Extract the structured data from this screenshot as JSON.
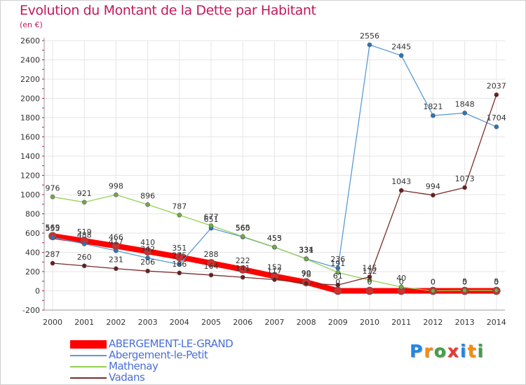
{
  "title": "Evolution du Montant de la Dette par Habitant",
  "unit": "(en €)",
  "logo": {
    "text": "Proxiti",
    "letters": [
      "P",
      "r",
      "o",
      "x",
      "i",
      "t",
      "i"
    ],
    "colors": [
      "#1e88e5",
      "#fb8c00",
      "#43a047",
      "#e53935",
      "#1e88e5",
      "#fb8c00",
      "#43a047"
    ]
  },
  "chart_data": {
    "type": "line",
    "title": "Evolution du Montant de la Dette par Habitant",
    "ylabel": "(en €)",
    "xlabel": "",
    "x": [
      "2000",
      "2001",
      "2002",
      "2003",
      "2004",
      "2005",
      "2006",
      "2007",
      "2008",
      "2009",
      "2010",
      "2011",
      "2012",
      "2013",
      "2014"
    ],
    "ylim": [
      -200,
      2600
    ],
    "yticks": [
      -200,
      0,
      200,
      400,
      600,
      800,
      1000,
      1200,
      1400,
      1600,
      1800,
      2000,
      2200,
      2400,
      2600
    ],
    "grid": true,
    "legend_position": "bottom-left",
    "series": [
      {
        "name": "ABERGEMENT-LE-GRAND",
        "color": "#ff0000",
        "point_color": "#d32f2f",
        "width": 8,
        "values": [
          569,
          519,
          466,
          410,
          351,
          288,
          222,
          152,
          90,
          0,
          0,
          0,
          0,
          0,
          0
        ],
        "labels": [
          "569",
          "519",
          "466",
          "410",
          "351",
          "288",
          "222",
          "152",
          "90",
          "0",
          "0",
          "0",
          "0",
          "0",
          "0"
        ]
      },
      {
        "name": "Abergement-le-Petit",
        "color": "#5b9bd5",
        "point_color": "#2e75b6",
        "width": 1.3,
        "values": [
          555,
          488,
          417,
          342,
          275,
          651,
          560,
          453,
          334,
          236,
          2556,
          2445,
          1821,
          1848,
          1704
        ],
        "labels": [
          "555",
          "488",
          "417",
          "342",
          "275",
          "651",
          "560",
          "453",
          "334",
          "236",
          "2556",
          "2445",
          "1821",
          "1848",
          "1704"
        ]
      },
      {
        "name": "Mathenay",
        "color": "#92d050",
        "point_color": "#70ad47",
        "width": 1.3,
        "values": [
          976,
          921,
          998,
          896,
          787,
          677,
          565,
          455,
          331,
          191,
          112,
          40,
          0,
          5,
          5
        ],
        "labels": [
          "976",
          "921",
          "998",
          "896",
          "787",
          "677",
          "565",
          "455",
          "331",
          "191",
          "112",
          "40",
          "0",
          "5",
          "5"
        ]
      },
      {
        "name": "Vadans",
        "color": "#7b2c2c",
        "point_color": "#6b1d1d",
        "width": 1.3,
        "values": [
          287,
          260,
          231,
          206,
          186,
          164,
          141,
          117,
          78,
          61,
          145,
          1043,
          994,
          1073,
          2037
        ],
        "labels": [
          "287",
          "260",
          "231",
          "206",
          "186",
          "164",
          "141",
          "117",
          "78",
          "61",
          "145",
          "1043",
          "994",
          "1073",
          "2037"
        ]
      }
    ]
  }
}
